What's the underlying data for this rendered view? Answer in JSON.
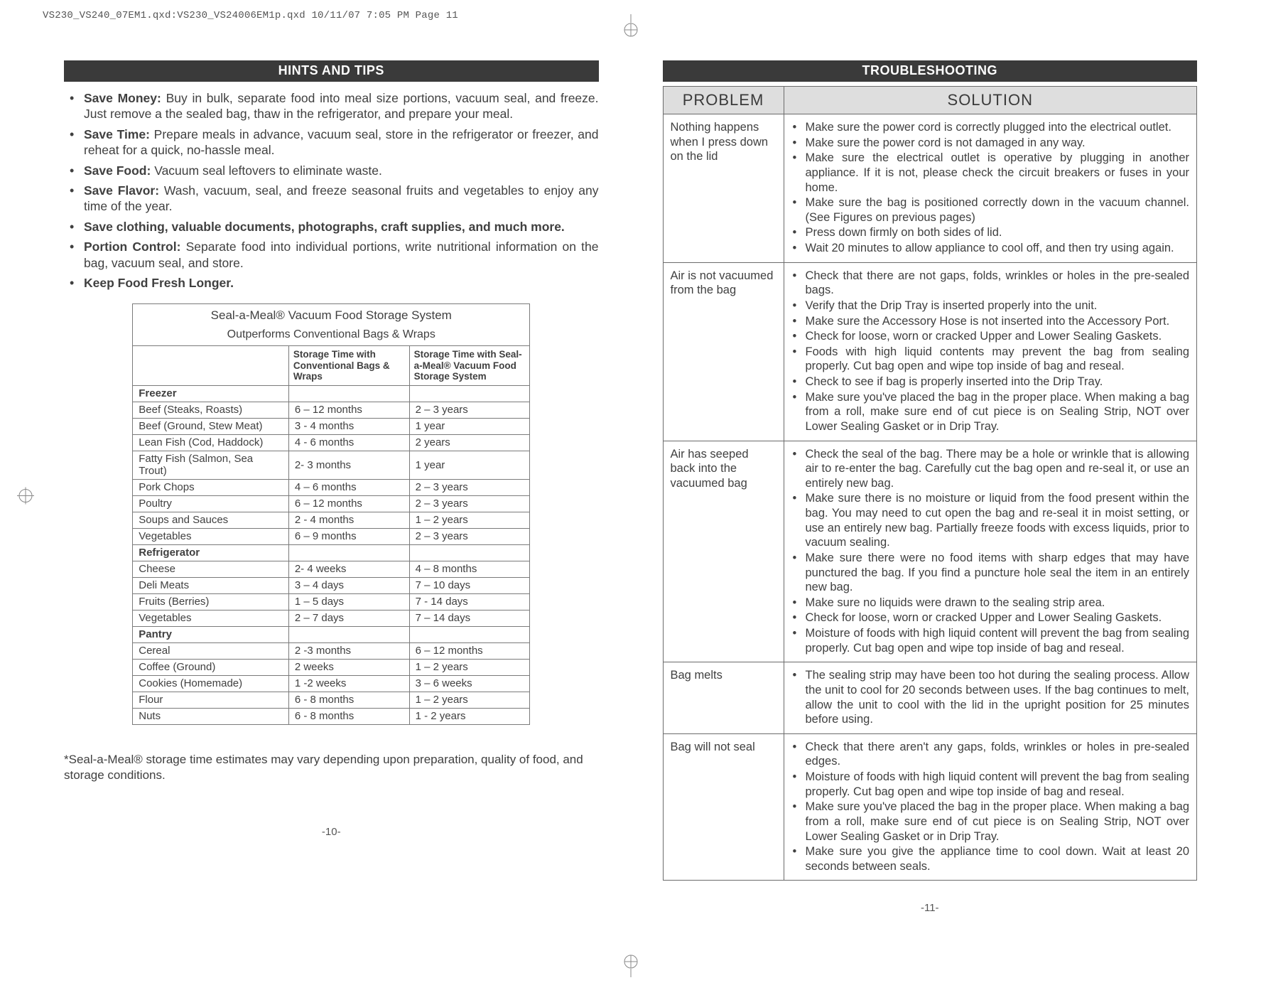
{
  "header_line": "VS230_VS240_07EM1.qxd:VS230_VS24006EM1p.qxd  10/11/07  7:05 PM  Page 11",
  "left": {
    "bar": "HINTS AND TIPS",
    "tips": [
      {
        "lead": "Save Money:",
        "body": " Buy in bulk, separate food into meal size portions, vacuum seal, and freeze. Just remove a the sealed bag, thaw in the refrigerator, and prepare your meal."
      },
      {
        "lead": "Save Time:",
        "body": " Prepare meals in advance, vacuum seal, store in the refrigerator or freezer, and reheat for a quick, no-hassle meal."
      },
      {
        "lead": "Save Food:",
        "body": " Vacuum seal leftovers to eliminate waste."
      },
      {
        "lead": "Save Flavor:",
        "body": " Wash, vacuum, seal, and freeze seasonal fruits and vegetables to enjoy any time of the year."
      },
      {
        "lead": "Save clothing, valuable documents, photographs, craft supplies, and much more.",
        "body": ""
      },
      {
        "lead": "Portion Control:",
        "body": " Separate food into individual portions, write nutritional information on the bag, vacuum seal, and store."
      },
      {
        "lead": "Keep Food Fresh Longer.",
        "body": ""
      }
    ],
    "table": {
      "title": "Seal-a-Meal® Vacuum Food Storage System",
      "subtitle": "Outperforms Conventional Bags & Wraps",
      "col2": "Storage Time with Conventional Bags & Wraps",
      "col3": "Storage Time with Seal-a-Meal® Vacuum Food Storage System",
      "rows": [
        {
          "section": "Freezer"
        },
        {
          "label": "Beef  (Steaks, Roasts)",
          "c2": "6 – 12 months",
          "c3": "2 – 3 years"
        },
        {
          "label": "Beef (Ground, Stew Meat)",
          "c2": "3 - 4 months",
          "c3": "1 year"
        },
        {
          "label": "Lean Fish (Cod, Haddock)",
          "c2": "4 - 6 months",
          "c3": "2 years"
        },
        {
          "label": "Fatty Fish (Salmon, Sea Trout)",
          "c2": "2- 3 months",
          "c3": "1 year"
        },
        {
          "label": "Pork Chops",
          "c2": "4 – 6 months",
          "c3": "2 – 3 years"
        },
        {
          "label": "Poultry",
          "c2": "6 – 12 months",
          "c3": "2 – 3 years"
        },
        {
          "label": "Soups and Sauces",
          "c2": "2 - 4 months",
          "c3": "1 – 2 years"
        },
        {
          "label": "Vegetables",
          "c2": "6 – 9 months",
          "c3": "2 – 3 years"
        },
        {
          "section": "Refrigerator"
        },
        {
          "label": "Cheese",
          "c2": "2- 4 weeks",
          "c3": "4 – 8 months"
        },
        {
          "label": "Deli Meats",
          "c2": "3 – 4 days",
          "c3": "7 – 10 days"
        },
        {
          "label": "Fruits (Berries)",
          "c2": "1 – 5 days",
          "c3": "7 - 14 days"
        },
        {
          "label": "Vegetables",
          "c2": "2 – 7 days",
          "c3": "7 – 14 days"
        },
        {
          "section": "Pantry"
        },
        {
          "label": "Cereal",
          "c2": "2 -3 months",
          "c3": "6 – 12 months"
        },
        {
          "label": "Coffee (Ground)",
          "c2": "2 weeks",
          "c3": "1 – 2 years"
        },
        {
          "label": "Cookies (Homemade)",
          "c2": "1 -2 weeks",
          "c3": "3 – 6 weeks"
        },
        {
          "label": "Flour",
          "c2": "6 - 8 months",
          "c3": "1 – 2 years"
        },
        {
          "label": "Nuts",
          "c2": "6 - 8 months",
          "c3": "1 - 2 years"
        }
      ]
    },
    "disclaimer": "*Seal-a-Meal® storage time estimates may vary depending upon preparation, quality of food, and storage conditions.",
    "pagenum": "-10-"
  },
  "right": {
    "bar": "TROUBLESHOOTING",
    "header_problem": "PROBLEM",
    "header_solution": "SOLUTION",
    "rows": [
      {
        "problem": "Nothing happens when I press down on the lid",
        "solutions": [
          "Make sure the power cord is correctly plugged into the electrical outlet.",
          "Make sure the power cord is not damaged in any way.",
          "Make sure the electrical outlet is operative by plugging in another appliance. If it is not, please check the circuit breakers or fuses in your home.",
          "Make sure the bag is positioned correctly down in the vacuum channel. (See Figures on previous pages)",
          "Press down firmly on both sides of lid.",
          "Wait 20 minutes to allow appliance to cool off, and then try using again."
        ]
      },
      {
        "problem": "Air is not vacuumed from the bag",
        "solutions": [
          "Check that there are not gaps, folds, wrinkles or holes in the pre-sealed bags.",
          "Verify that the Drip Tray is inserted properly into the unit.",
          "Make sure the Accessory Hose is not inserted into the Accessory Port.",
          "Check for loose, worn or cracked Upper and Lower Sealing Gaskets.",
          "Foods with high liquid contents may prevent the bag from sealing properly. Cut bag open and wipe top inside of bag and reseal.",
          "Check to see if bag is properly inserted into the Drip Tray.",
          "Make sure you've placed the bag in the proper place. When making a bag from a roll, make sure end of cut piece is on Sealing Strip, NOT over Lower Sealing Gasket or in Drip Tray."
        ]
      },
      {
        "problem": "Air has seeped back into the vacuumed bag",
        "solutions": [
          "Check the seal of the bag. There may be a hole or wrinkle that is allowing air to re-enter the bag. Carefully cut the bag open and re-seal it, or use an entirely new bag.",
          "Make sure there is no moisture or liquid from the food present within the bag. You may need to cut open the bag and re-seal it in moist setting, or use an entirely new bag. Partially freeze foods with excess liquids, prior to vacuum sealing.",
          "Make sure there were no food items with sharp edges that may have punctured the bag. If you find a puncture hole seal the item in an entirely new bag.",
          "Make sure no liquids were drawn to the sealing strip area.",
          "Check for loose, worn or cracked Upper and Lower Sealing Gaskets.",
          "Moisture of foods with high liquid content will prevent the bag from sealing properly. Cut bag open and wipe top inside of bag and reseal."
        ]
      },
      {
        "problem": "Bag melts",
        "solutions": [
          "The sealing strip may have been too hot during the sealing process. Allow the unit to cool for 20 seconds between uses. If the bag continues to melt, allow the unit to cool with the lid in the upright position for 25 minutes before using."
        ]
      },
      {
        "problem": "Bag will not seal",
        "solutions": [
          "Check that there aren't any gaps, folds, wrinkles or holes in pre-sealed edges.",
          "Moisture of foods with high liquid content will prevent the bag from sealing properly. Cut bag open and wipe top inside of bag and reseal.",
          "Make sure you've placed the bag in the proper place. When making a bag from a roll, make sure end of cut piece is on Sealing Strip, NOT over Lower Sealing Gasket or in Drip Tray.",
          "Make sure you give the appliance time to cool down.  Wait at least 20 seconds between seals."
        ]
      }
    ],
    "pagenum": "-11-"
  }
}
